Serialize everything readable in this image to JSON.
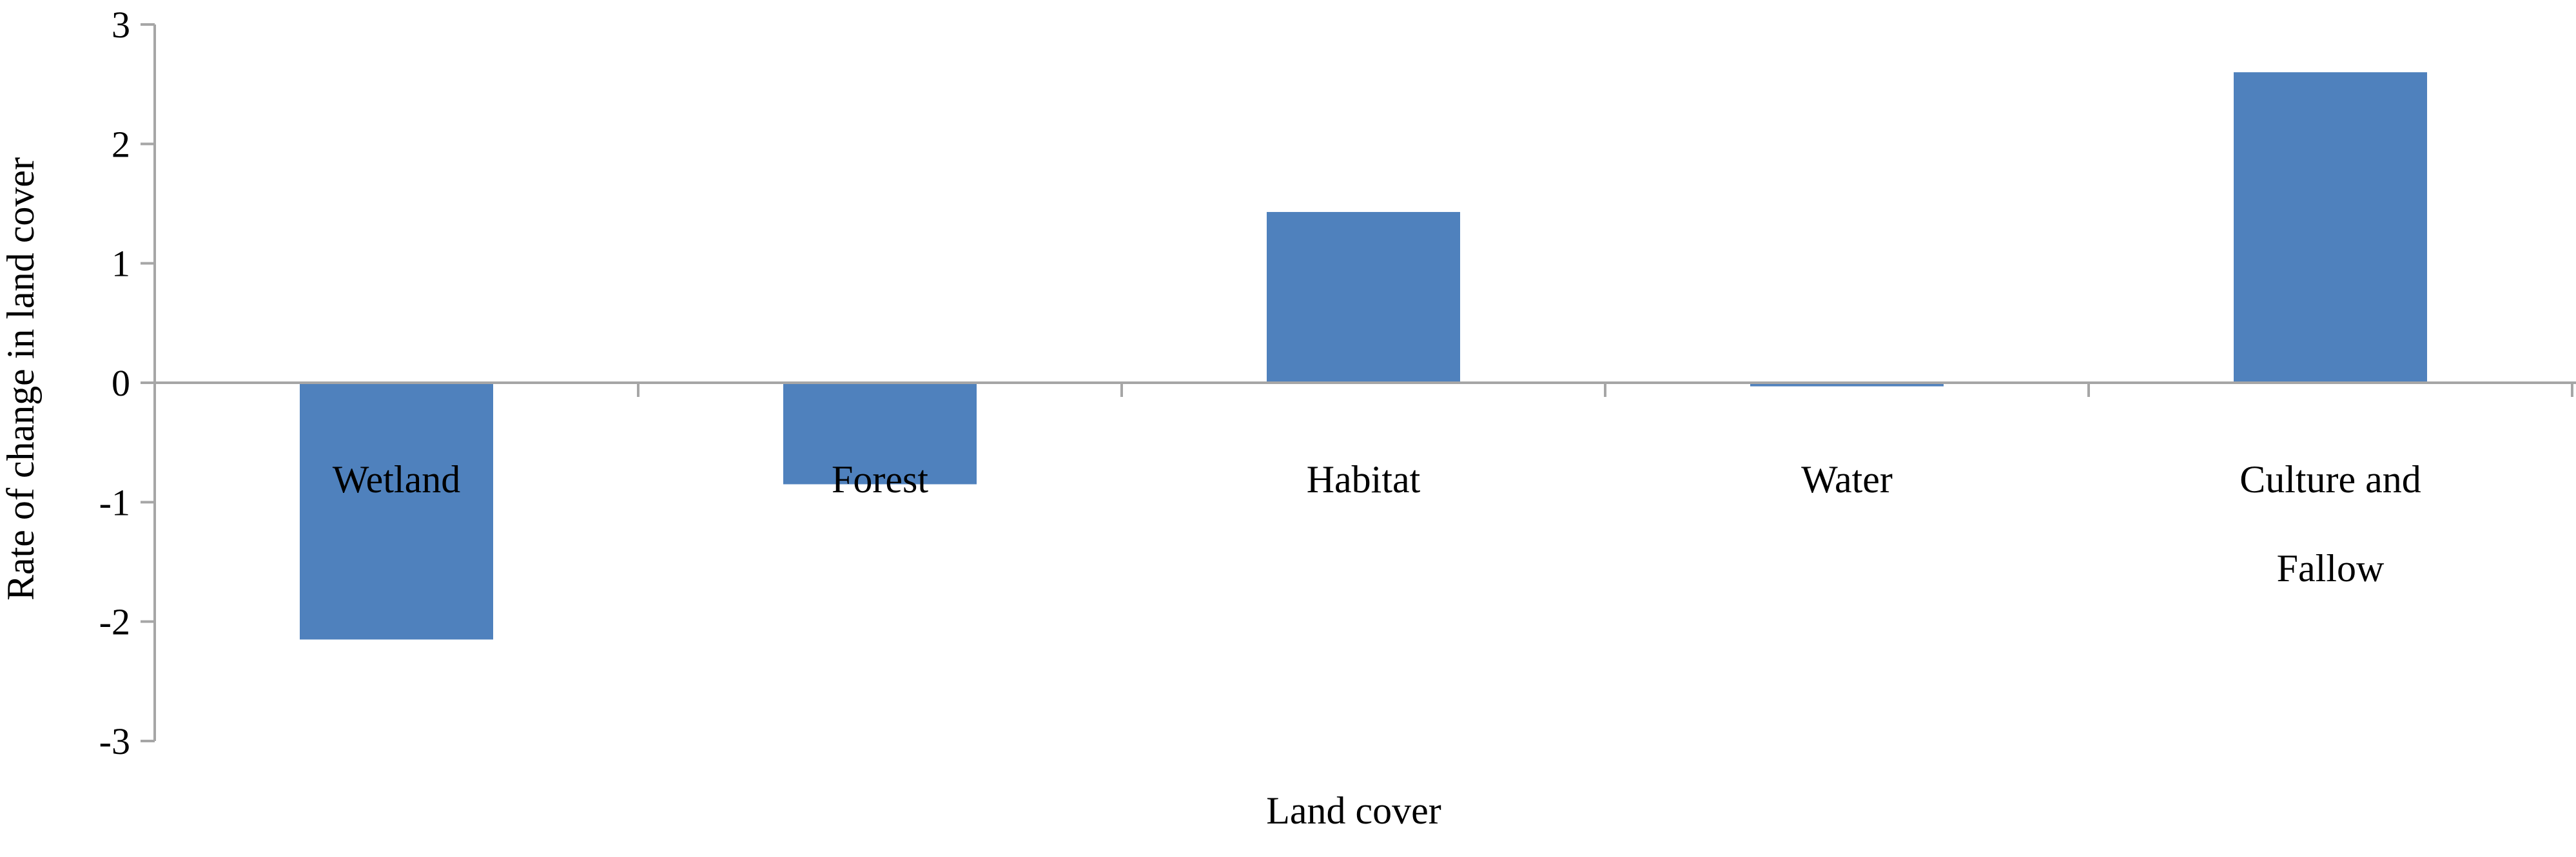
{
  "chart_data": {
    "type": "bar",
    "title": "",
    "xlabel": "Land cover",
    "ylabel": "Rate of change in land cover",
    "ylim": [
      -3,
      3
    ],
    "yticks": [
      3,
      2,
      1,
      0,
      -1,
      -2,
      -3
    ],
    "ytick_labels": [
      "3",
      "2",
      "1",
      "0",
      "-1",
      "-2",
      "-3"
    ],
    "grid": false,
    "categories": [
      [
        "Wetland"
      ],
      [
        "Forest"
      ],
      [
        "Habitat"
      ],
      [
        "Water"
      ],
      [
        "Culture and",
        "Fallow"
      ]
    ],
    "values": [
      -2.15,
      -0.85,
      1.43,
      -0.03,
      2.6
    ],
    "bar_color": "#4f81bd",
    "axis_color": "#a6a6a6"
  }
}
